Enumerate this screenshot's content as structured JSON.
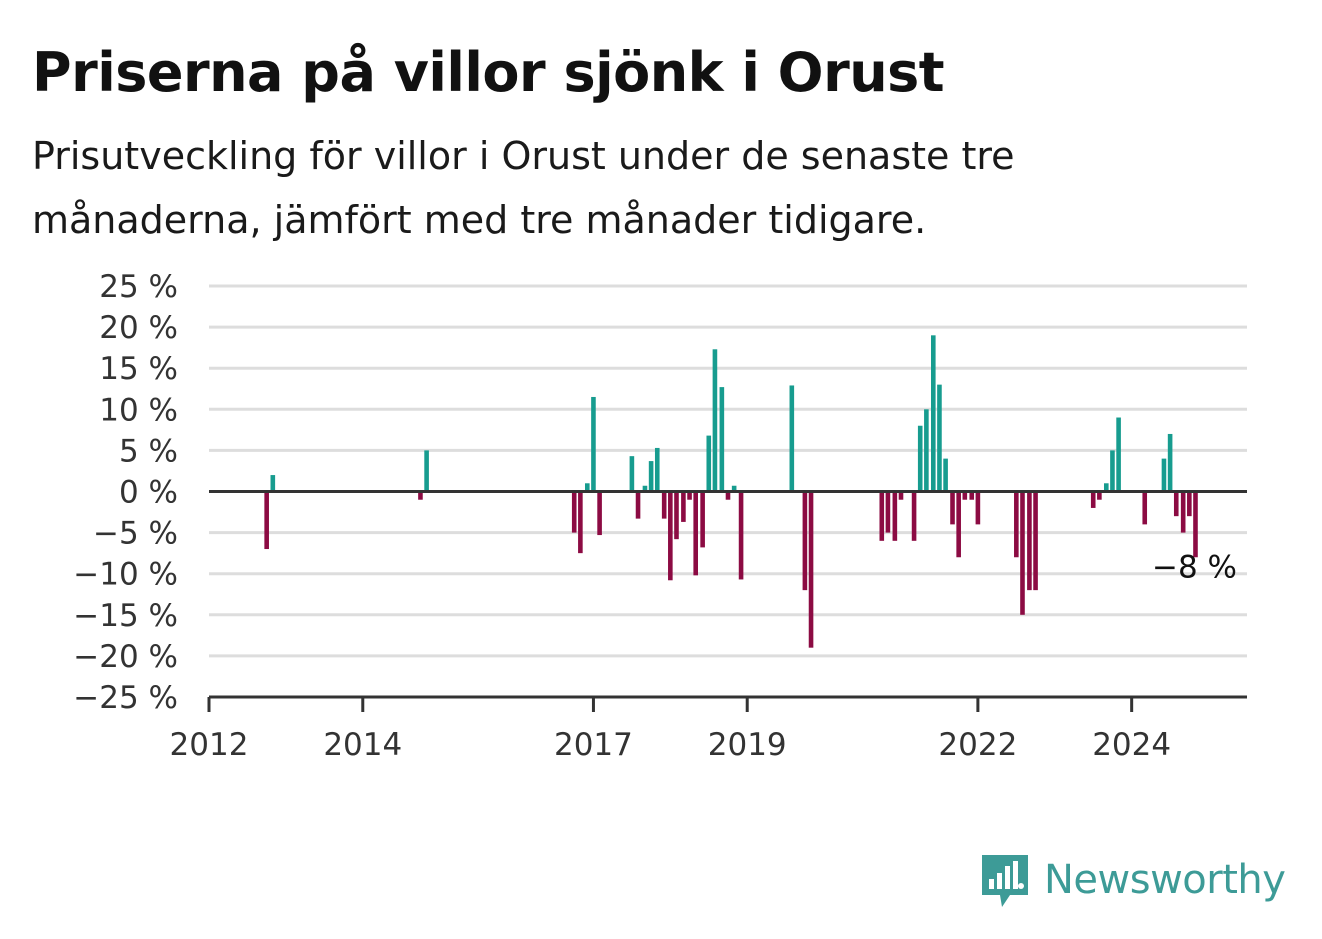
{
  "header": {
    "title": "Priserna på villor sjönk i Orust",
    "subtitle": "Prisutveckling för villor i Orust under de senaste tre månaderna, jämfört med tre månader tidigare."
  },
  "brand": {
    "name": "Newsworthy",
    "icon": "newsworthy-logo-icon",
    "color": "#3d9b97"
  },
  "colors": {
    "positive": "#179c8f",
    "negative": "#8c0b43",
    "grid": "#dddddd",
    "axis": "#333333"
  },
  "chart_data": {
    "type": "bar",
    "title": "Priserna på villor sjönk i Orust",
    "xlabel": "",
    "ylabel": "",
    "ylim": [
      -25,
      25
    ],
    "xlim": [
      2012.0,
      2025.5
    ],
    "grid": true,
    "y_ticks": [
      "25 %",
      "20 %",
      "15 %",
      "10 %",
      "5 %",
      "0 %",
      "−5 %",
      "−10 %",
      "−15 %",
      "−20 %",
      "−25 %"
    ],
    "y_tick_values": [
      25,
      20,
      15,
      10,
      5,
      0,
      -5,
      -10,
      -15,
      -20,
      -25
    ],
    "x_ticks": [
      "2012",
      "2014",
      "2017",
      "2019",
      "2022",
      "2024"
    ],
    "x_tick_values": [
      2012,
      2014,
      2017,
      2019,
      2022,
      2024
    ],
    "annotation": {
      "text": "−8 %",
      "x": 2025.25,
      "y": -8
    },
    "points": [
      {
        "x": 2012.75,
        "value": -7
      },
      {
        "x": 2012.83,
        "value": 2
      },
      {
        "x": 2014.75,
        "value": -1
      },
      {
        "x": 2014.83,
        "value": 5
      },
      {
        "x": 2016.75,
        "value": -5
      },
      {
        "x": 2016.83,
        "value": -7.5
      },
      {
        "x": 2016.92,
        "value": 1
      },
      {
        "x": 2017.0,
        "value": 11.5
      },
      {
        "x": 2017.08,
        "value": -5.3
      },
      {
        "x": 2017.5,
        "value": 4.3
      },
      {
        "x": 2017.58,
        "value": -3.3
      },
      {
        "x": 2017.67,
        "value": 0.7
      },
      {
        "x": 2017.75,
        "value": 3.7
      },
      {
        "x": 2017.83,
        "value": 5.3
      },
      {
        "x": 2017.92,
        "value": -3.3
      },
      {
        "x": 2018.0,
        "value": -10.8
      },
      {
        "x": 2018.08,
        "value": -5.8
      },
      {
        "x": 2018.17,
        "value": -3.7
      },
      {
        "x": 2018.25,
        "value": -1
      },
      {
        "x": 2018.33,
        "value": -10.2
      },
      {
        "x": 2018.42,
        "value": -6.8
      },
      {
        "x": 2018.5,
        "value": 6.8
      },
      {
        "x": 2018.58,
        "value": 17.3
      },
      {
        "x": 2018.67,
        "value": 12.7
      },
      {
        "x": 2018.75,
        "value": -1
      },
      {
        "x": 2018.83,
        "value": 0.7
      },
      {
        "x": 2018.92,
        "value": -10.7
      },
      {
        "x": 2019.58,
        "value": 12.9
      },
      {
        "x": 2019.75,
        "value": -12
      },
      {
        "x": 2019.83,
        "value": -19
      },
      {
        "x": 2020.75,
        "value": -6
      },
      {
        "x": 2020.83,
        "value": -5
      },
      {
        "x": 2020.92,
        "value": -6
      },
      {
        "x": 2021.0,
        "value": -1
      },
      {
        "x": 2021.17,
        "value": -6
      },
      {
        "x": 2021.25,
        "value": 8
      },
      {
        "x": 2021.33,
        "value": 10
      },
      {
        "x": 2021.42,
        "value": 19
      },
      {
        "x": 2021.5,
        "value": 13
      },
      {
        "x": 2021.58,
        "value": 4
      },
      {
        "x": 2021.67,
        "value": -4
      },
      {
        "x": 2021.75,
        "value": -8
      },
      {
        "x": 2021.83,
        "value": -1
      },
      {
        "x": 2021.92,
        "value": -1
      },
      {
        "x": 2022.0,
        "value": -4
      },
      {
        "x": 2022.5,
        "value": -8
      },
      {
        "x": 2022.58,
        "value": -15
      },
      {
        "x": 2022.67,
        "value": -12
      },
      {
        "x": 2022.75,
        "value": -12
      },
      {
        "x": 2023.5,
        "value": -2
      },
      {
        "x": 2023.58,
        "value": -1
      },
      {
        "x": 2023.67,
        "value": 1
      },
      {
        "x": 2023.75,
        "value": 5
      },
      {
        "x": 2023.83,
        "value": 9
      },
      {
        "x": 2024.17,
        "value": -4
      },
      {
        "x": 2024.42,
        "value": 4
      },
      {
        "x": 2024.5,
        "value": 7
      },
      {
        "x": 2024.58,
        "value": -3
      },
      {
        "x": 2024.67,
        "value": -5
      },
      {
        "x": 2024.75,
        "value": -3
      },
      {
        "x": 2024.83,
        "value": -8
      }
    ]
  }
}
